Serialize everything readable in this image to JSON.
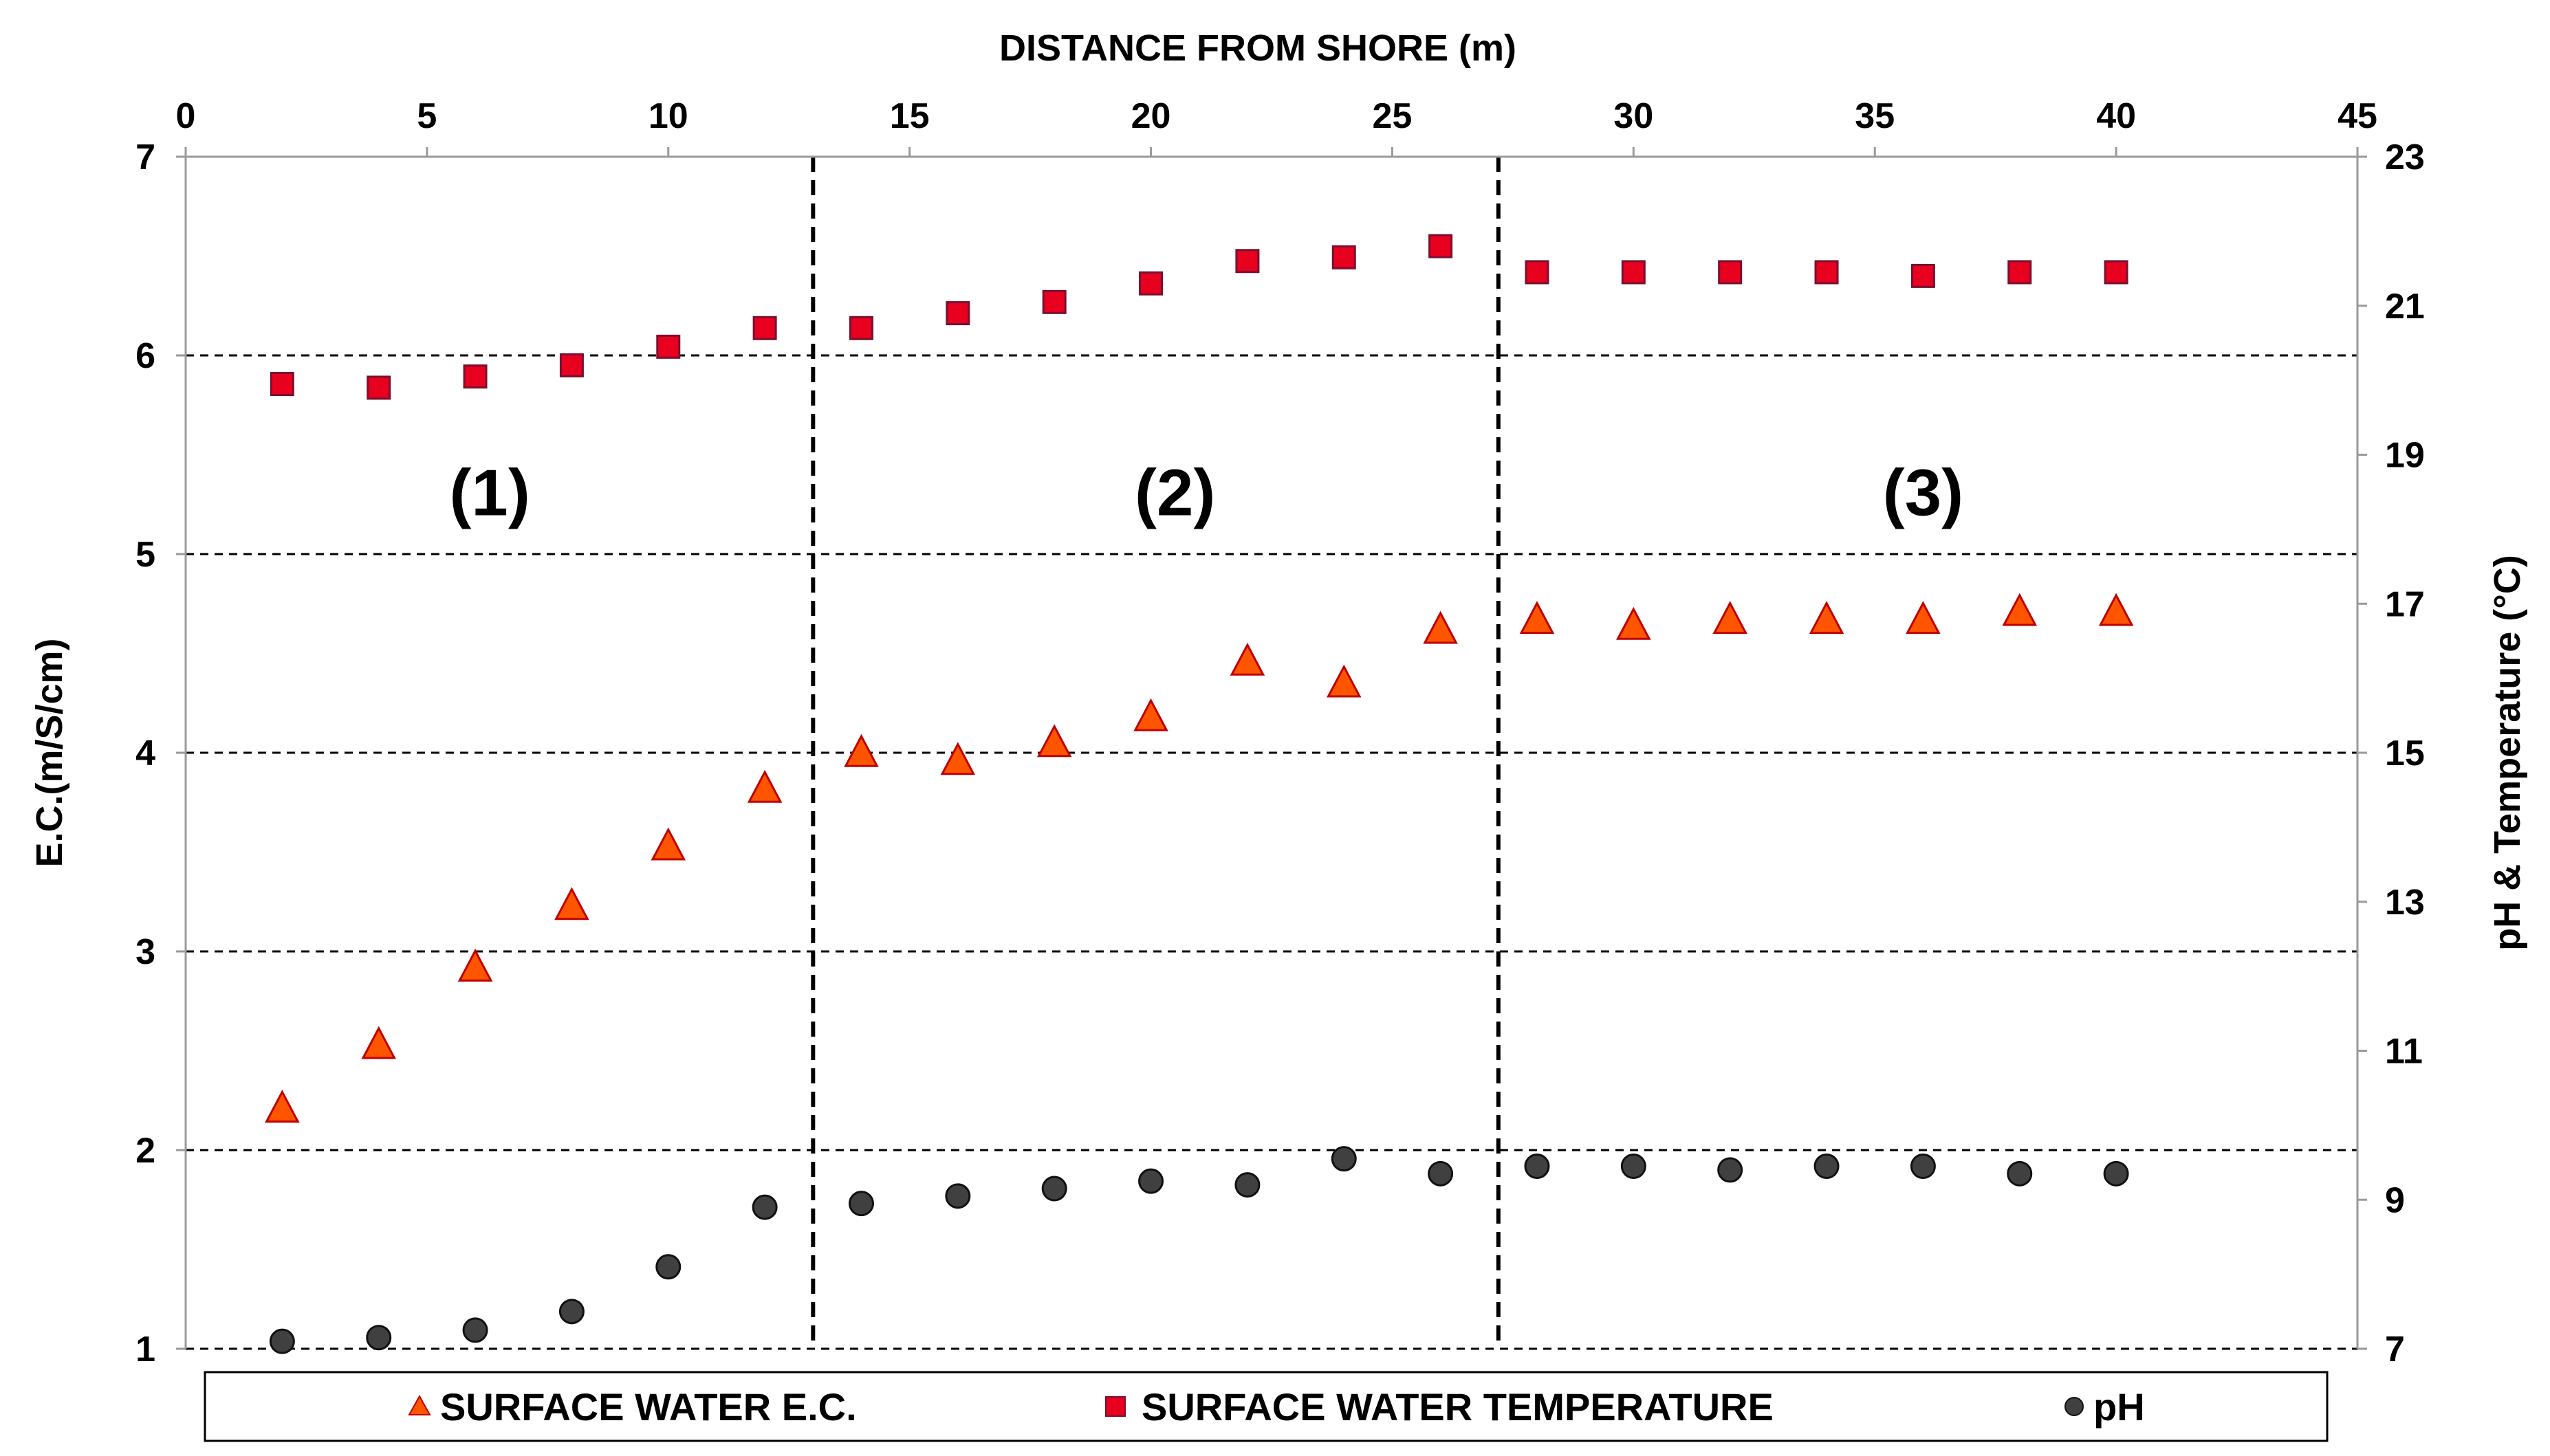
{
  "chart_data": {
    "type": "scatter",
    "x_axis": {
      "label": "DISTANCE FROM SHORE (m)",
      "position": "top",
      "range": [
        0,
        45
      ],
      "ticks": [
        0,
        5,
        10,
        15,
        20,
        25,
        30,
        35,
        40,
        45
      ]
    },
    "y_left": {
      "label": "E.C.(m/S/cm)",
      "range": [
        1,
        7
      ],
      "ticks": [
        1,
        2,
        3,
        4,
        5,
        6,
        7
      ]
    },
    "y_right": {
      "label": "pH & Temperature (°C)",
      "range": [
        7,
        23
      ],
      "ticks": [
        7,
        9,
        11,
        13,
        15,
        17,
        19,
        21,
        23
      ]
    },
    "gridlines": "horizontal dashed",
    "dividers_x": [
      13,
      27.2
    ],
    "regions": [
      {
        "label": "(1)",
        "x": 6.3,
        "y": 5.3
      },
      {
        "label": "(2)",
        "x": 20.5,
        "y": 5.3
      },
      {
        "label": "(3)",
        "x": 36,
        "y": 5.3
      }
    ],
    "x": [
      2,
      4,
      6,
      8,
      10,
      12,
      14,
      16,
      18,
      20,
      22,
      24,
      26,
      28,
      30,
      32,
      34,
      36,
      38,
      40
    ],
    "series": [
      {
        "name": "SURFACE WATER E.C.",
        "axis": "left",
        "marker": "triangle",
        "color": "#FF5500",
        "values": [
          2.21,
          2.53,
          2.92,
          3.23,
          3.53,
          3.82,
          4.0,
          3.96,
          4.05,
          4.18,
          4.46,
          4.35,
          4.62,
          4.67,
          4.64,
          4.67,
          4.67,
          4.67,
          4.71,
          4.71
        ]
      },
      {
        "name": "SURFACE WATER TEMPERATURE",
        "axis": "right",
        "marker": "square",
        "color": "#E8001F",
        "values": [
          19.95,
          19.9,
          20.05,
          20.2,
          20.45,
          20.7,
          20.7,
          20.9,
          21.05,
          21.3,
          21.6,
          21.65,
          21.8,
          21.45,
          21.45,
          21.45,
          21.45,
          21.4,
          21.45,
          21.45
        ]
      },
      {
        "name": "pH",
        "axis": "right",
        "marker": "circle",
        "color": "#404040",
        "values": [
          7.1,
          7.15,
          7.25,
          7.5,
          8.1,
          8.9,
          8.95,
          9.05,
          9.15,
          9.25,
          9.2,
          9.55,
          9.35,
          9.45,
          9.45,
          9.4,
          9.45,
          9.45,
          9.35,
          9.35
        ]
      }
    ]
  }
}
